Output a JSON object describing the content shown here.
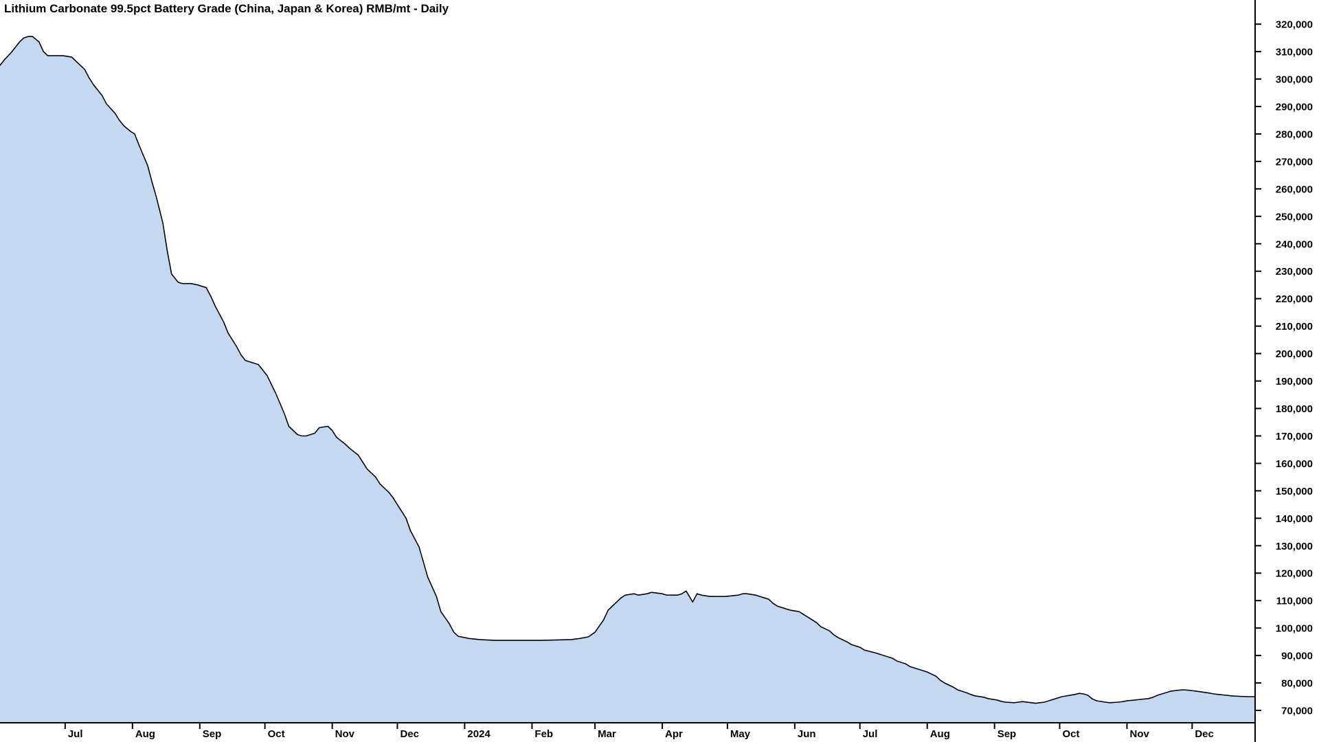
{
  "chart_data": {
    "type": "area",
    "title": "Lithium Carbonate 99.5pct Battery Grade (China, Japan & Korea) RMB/mt - Daily",
    "ylabel": "",
    "xlabel": "",
    "grid": "off",
    "legend": "none",
    "colors": {
      "fill": "#c5d8f1",
      "line": "#000000",
      "axis": "#000000",
      "text": "#000000",
      "background": "#ffffff"
    },
    "x_domain": [
      "2023-06-01",
      "2024-12-30"
    ],
    "ylim": [
      65500,
      328800
    ],
    "y_ticks": [
      [
        320000,
        "320,000"
      ],
      [
        310000,
        "310,000"
      ],
      [
        300000,
        "300,000"
      ],
      [
        290000,
        "290,000"
      ],
      [
        280000,
        "280,000"
      ],
      [
        270000,
        "270,000"
      ],
      [
        260000,
        "260,000"
      ],
      [
        250000,
        "250,000"
      ],
      [
        240000,
        "240,000"
      ],
      [
        230000,
        "230,000"
      ],
      [
        220000,
        "220,000"
      ],
      [
        210000,
        "210,000"
      ],
      [
        200000,
        "200,000"
      ],
      [
        190000,
        "190,000"
      ],
      [
        180000,
        "180,000"
      ],
      [
        170000,
        "170,000"
      ],
      [
        160000,
        "160,000"
      ],
      [
        150000,
        "150,000"
      ],
      [
        140000,
        "140,000"
      ],
      [
        130000,
        "130,000"
      ],
      [
        120000,
        "120,000"
      ],
      [
        110000,
        "110,000"
      ],
      [
        100000,
        "100,000"
      ],
      [
        90000,
        "90,000"
      ],
      [
        80000,
        "80,000"
      ],
      [
        70000,
        "70,000"
      ]
    ],
    "x_ticks": [
      [
        "2023-07-01",
        "Jul"
      ],
      [
        "2023-08-01",
        "Aug"
      ],
      [
        "2023-09-01",
        "Sep"
      ],
      [
        "2023-10-01",
        "Oct"
      ],
      [
        "2023-11-01",
        "Nov"
      ],
      [
        "2023-12-01",
        "Dec"
      ],
      [
        "2024-01-01",
        "2024"
      ],
      [
        "2024-02-01",
        "Feb"
      ],
      [
        "2024-03-01",
        "Mar"
      ],
      [
        "2024-04-01",
        "Apr"
      ],
      [
        "2024-05-01",
        "May"
      ],
      [
        "2024-06-01",
        "Jun"
      ],
      [
        "2024-07-01",
        "Jul"
      ],
      [
        "2024-08-01",
        "Aug"
      ],
      [
        "2024-09-01",
        "Sep"
      ],
      [
        "2024-10-01",
        "Oct"
      ],
      [
        "2024-11-01",
        "Nov"
      ],
      [
        "2024-12-01",
        "Dec"
      ]
    ],
    "series": [
      {
        "name": "Lithium Carbonate 99.5pct Battery Grade (China, Japan & Korea)",
        "unit": "RMB/mt",
        "points": [
          [
            "2023-06-01",
            305000
          ],
          [
            "2023-06-03",
            307000
          ],
          [
            "2023-06-06",
            309500
          ],
          [
            "2023-06-08",
            311500
          ],
          [
            "2023-06-10",
            313500
          ],
          [
            "2023-06-12",
            315000
          ],
          [
            "2023-06-14",
            315500
          ],
          [
            "2023-06-16",
            315500
          ],
          [
            "2023-06-19",
            313500
          ],
          [
            "2023-06-21",
            310000
          ],
          [
            "2023-06-23",
            308500
          ],
          [
            "2023-06-26",
            308500
          ],
          [
            "2023-06-28",
            308500
          ],
          [
            "2023-06-30",
            308500
          ],
          [
            "2023-07-04",
            308000
          ],
          [
            "2023-07-06",
            306500
          ],
          [
            "2023-07-10",
            303500
          ],
          [
            "2023-07-12",
            300500
          ],
          [
            "2023-07-14",
            298000
          ],
          [
            "2023-07-18",
            294000
          ],
          [
            "2023-07-20",
            291000
          ],
          [
            "2023-07-24",
            287500
          ],
          [
            "2023-07-26",
            285000
          ],
          [
            "2023-07-28",
            283000
          ],
          [
            "2023-07-31",
            281000
          ],
          [
            "2023-08-02",
            280000
          ],
          [
            "2023-08-04",
            276000
          ],
          [
            "2023-08-08",
            268500
          ],
          [
            "2023-08-10",
            262500
          ],
          [
            "2023-08-12",
            257000
          ],
          [
            "2023-08-15",
            247500
          ],
          [
            "2023-08-17",
            237500
          ],
          [
            "2023-08-19",
            229000
          ],
          [
            "2023-08-22",
            226000
          ],
          [
            "2023-08-24",
            225500
          ],
          [
            "2023-08-28",
            225500
          ],
          [
            "2023-08-31",
            225000
          ],
          [
            "2023-09-04",
            224000
          ],
          [
            "2023-09-06",
            221000
          ],
          [
            "2023-09-08",
            217500
          ],
          [
            "2023-09-12",
            211500
          ],
          [
            "2023-09-14",
            207500
          ],
          [
            "2023-09-18",
            202500
          ],
          [
            "2023-09-20",
            199500
          ],
          [
            "2023-09-22",
            197500
          ],
          [
            "2023-09-26",
            196500
          ],
          [
            "2023-09-28",
            196000
          ],
          [
            "2023-10-02",
            192000
          ],
          [
            "2023-10-06",
            185500
          ],
          [
            "2023-10-10",
            178000
          ],
          [
            "2023-10-12",
            173500
          ],
          [
            "2023-10-16",
            170500
          ],
          [
            "2023-10-18",
            170000
          ],
          [
            "2023-10-20",
            170000
          ],
          [
            "2023-10-24",
            171000
          ],
          [
            "2023-10-26",
            173000
          ],
          [
            "2023-10-30",
            173500
          ],
          [
            "2023-11-01",
            172000
          ],
          [
            "2023-11-03",
            169500
          ],
          [
            "2023-11-07",
            167000
          ],
          [
            "2023-11-09",
            165500
          ],
          [
            "2023-11-13",
            163000
          ],
          [
            "2023-11-15",
            160500
          ],
          [
            "2023-11-17",
            158000
          ],
          [
            "2023-11-21",
            155000
          ],
          [
            "2023-11-23",
            152500
          ],
          [
            "2023-11-27",
            149500
          ],
          [
            "2023-11-29",
            147500
          ],
          [
            "2023-12-01",
            145000
          ],
          [
            "2023-12-05",
            140000
          ],
          [
            "2023-12-07",
            135500
          ],
          [
            "2023-12-11",
            129500
          ],
          [
            "2023-12-13",
            124000
          ],
          [
            "2023-12-15",
            118500
          ],
          [
            "2023-12-19",
            111500
          ],
          [
            "2023-12-21",
            106000
          ],
          [
            "2023-12-25",
            101500
          ],
          [
            "2023-12-27",
            98500
          ],
          [
            "2023-12-29",
            97000
          ],
          [
            "2024-01-03",
            96200
          ],
          [
            "2024-01-08",
            95800
          ],
          [
            "2024-01-15",
            95500
          ],
          [
            "2024-01-22",
            95500
          ],
          [
            "2024-01-29",
            95500
          ],
          [
            "2024-02-05",
            95500
          ],
          [
            "2024-02-19",
            95800
          ],
          [
            "2024-02-23",
            96200
          ],
          [
            "2024-02-27",
            96800
          ],
          [
            "2024-03-01",
            98500
          ],
          [
            "2024-03-05",
            103000
          ],
          [
            "2024-03-07",
            106500
          ],
          [
            "2024-03-11",
            109500
          ],
          [
            "2024-03-13",
            111000
          ],
          [
            "2024-03-15",
            112000
          ],
          [
            "2024-03-19",
            112500
          ],
          [
            "2024-03-21",
            112000
          ],
          [
            "2024-03-25",
            112500
          ],
          [
            "2024-03-27",
            113000
          ],
          [
            "2024-04-01",
            112500
          ],
          [
            "2024-04-03",
            112000
          ],
          [
            "2024-04-08",
            112000
          ],
          [
            "2024-04-10",
            112500
          ],
          [
            "2024-04-12",
            113500
          ],
          [
            "2024-04-15",
            109500
          ],
          [
            "2024-04-17",
            112500
          ],
          [
            "2024-04-19",
            112000
          ],
          [
            "2024-04-23",
            111500
          ],
          [
            "2024-04-25",
            111500
          ],
          [
            "2024-04-30",
            111500
          ],
          [
            "2024-05-06",
            112000
          ],
          [
            "2024-05-08",
            112500
          ],
          [
            "2024-05-10",
            112500
          ],
          [
            "2024-05-14",
            112000
          ],
          [
            "2024-05-16",
            111500
          ],
          [
            "2024-05-20",
            110500
          ],
          [
            "2024-05-22",
            109000
          ],
          [
            "2024-05-24",
            108000
          ],
          [
            "2024-05-28",
            107000
          ],
          [
            "2024-05-30",
            106500
          ],
          [
            "2024-06-03",
            106000
          ],
          [
            "2024-06-05",
            105000
          ],
          [
            "2024-06-07",
            104000
          ],
          [
            "2024-06-11",
            102000
          ],
          [
            "2024-06-13",
            100500
          ],
          [
            "2024-06-17",
            99000
          ],
          [
            "2024-06-19",
            97500
          ],
          [
            "2024-06-21",
            96500
          ],
          [
            "2024-06-25",
            95000
          ],
          [
            "2024-06-27",
            94000
          ],
          [
            "2024-07-01",
            93000
          ],
          [
            "2024-07-03",
            92000
          ],
          [
            "2024-07-08",
            91000
          ],
          [
            "2024-07-10",
            90500
          ],
          [
            "2024-07-12",
            90000
          ],
          [
            "2024-07-16",
            89000
          ],
          [
            "2024-07-18",
            88000
          ],
          [
            "2024-07-22",
            87000
          ],
          [
            "2024-07-24",
            86000
          ],
          [
            "2024-07-26",
            85500
          ],
          [
            "2024-07-30",
            84500
          ],
          [
            "2024-08-01",
            84000
          ],
          [
            "2024-08-05",
            82500
          ],
          [
            "2024-08-07",
            81000
          ],
          [
            "2024-08-09",
            80000
          ],
          [
            "2024-08-13",
            78500
          ],
          [
            "2024-08-15",
            77500
          ],
          [
            "2024-08-19",
            76500
          ],
          [
            "2024-08-21",
            75800
          ],
          [
            "2024-08-23",
            75300
          ],
          [
            "2024-08-27",
            74800
          ],
          [
            "2024-08-29",
            74300
          ],
          [
            "2024-09-02",
            73800
          ],
          [
            "2024-09-04",
            73300
          ],
          [
            "2024-09-06",
            73000
          ],
          [
            "2024-09-10",
            72800
          ],
          [
            "2024-09-12",
            73000
          ],
          [
            "2024-09-14",
            73200
          ],
          [
            "2024-09-18",
            72800
          ],
          [
            "2024-09-20",
            72600
          ],
          [
            "2024-09-24",
            73000
          ],
          [
            "2024-09-26",
            73500
          ],
          [
            "2024-09-30",
            74500
          ],
          [
            "2024-10-02",
            75000
          ],
          [
            "2024-10-08",
            75800
          ],
          [
            "2024-10-10",
            76200
          ],
          [
            "2024-10-12",
            76000
          ],
          [
            "2024-10-14",
            75500
          ],
          [
            "2024-10-16",
            74200
          ],
          [
            "2024-10-18",
            73500
          ],
          [
            "2024-10-22",
            73000
          ],
          [
            "2024-10-24",
            72800
          ],
          [
            "2024-10-28",
            73000
          ],
          [
            "2024-10-30",
            73200
          ],
          [
            "2024-11-01",
            73500
          ],
          [
            "2024-11-05",
            73800
          ],
          [
            "2024-11-07",
            74000
          ],
          [
            "2024-11-11",
            74300
          ],
          [
            "2024-11-13",
            74800
          ],
          [
            "2024-11-15",
            75500
          ],
          [
            "2024-11-19",
            76500
          ],
          [
            "2024-11-21",
            77000
          ],
          [
            "2024-11-25",
            77400
          ],
          [
            "2024-11-27",
            77500
          ],
          [
            "2024-11-29",
            77400
          ],
          [
            "2024-12-03",
            77000
          ],
          [
            "2024-12-05",
            76800
          ],
          [
            "2024-12-09",
            76300
          ],
          [
            "2024-12-11",
            76000
          ],
          [
            "2024-12-13",
            75800
          ],
          [
            "2024-12-17",
            75500
          ],
          [
            "2024-12-19",
            75300
          ],
          [
            "2024-12-23",
            75100
          ],
          [
            "2024-12-27",
            75000
          ],
          [
            "2024-12-30",
            75000
          ]
        ]
      }
    ]
  }
}
